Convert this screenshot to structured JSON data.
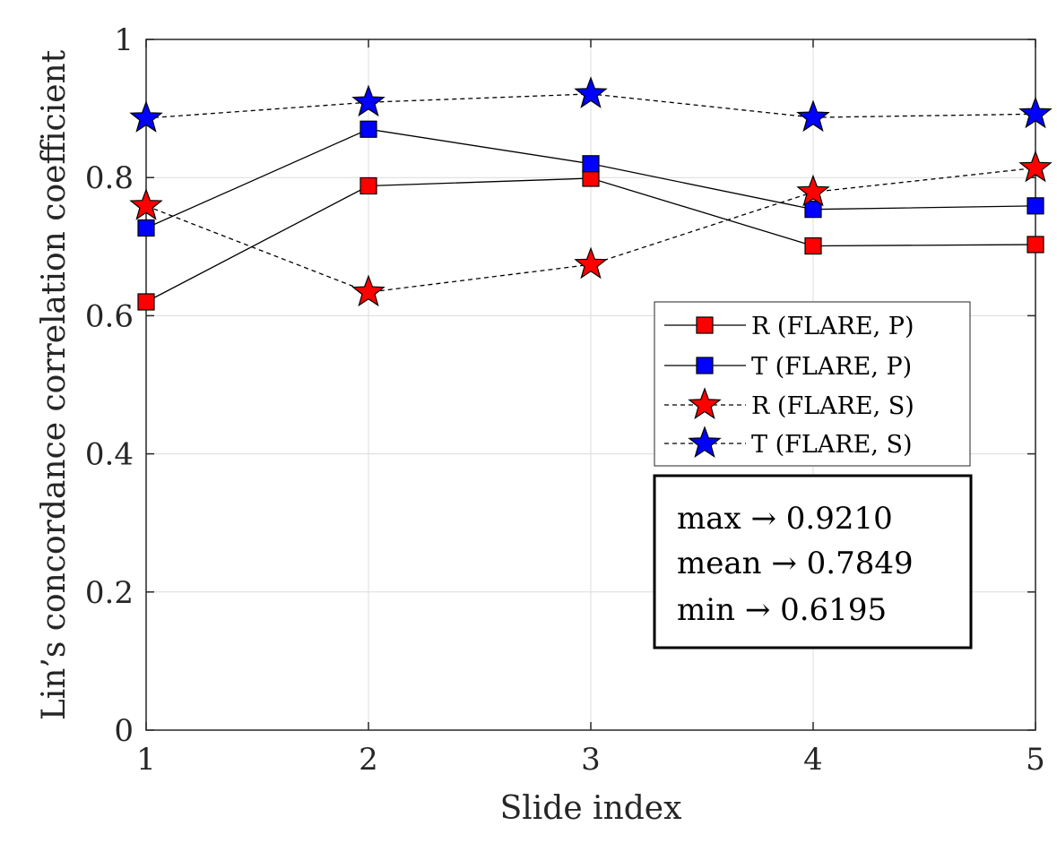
{
  "chart_data": {
    "type": "line",
    "xlabel": "Slide index",
    "ylabel": "Lin’s concordance correlation coefficient",
    "x": [
      1,
      2,
      3,
      4,
      5
    ],
    "xlim": [
      1,
      5
    ],
    "ylim": [
      0,
      1
    ],
    "xticks": [
      1,
      2,
      3,
      4,
      5
    ],
    "yticks": [
      0,
      0.2,
      0.4,
      0.6,
      0.8,
      1
    ],
    "ytick_labels": [
      "0",
      "0.2",
      "0.4",
      "0.6",
      "0.8",
      "1"
    ],
    "grid": true,
    "legend_position": "right",
    "series": [
      {
        "name": "R (FLARE, P)",
        "values": [
          0.62,
          0.788,
          0.799,
          0.701,
          0.703
        ],
        "color": "#ff0000",
        "marker": "square",
        "line": "solid"
      },
      {
        "name": "T (FLARE, P)",
        "values": [
          0.727,
          0.87,
          0.82,
          0.754,
          0.759
        ],
        "color": "#0000ff",
        "marker": "square",
        "line": "solid"
      },
      {
        "name": "R (FLARE, S)",
        "values": [
          0.759,
          0.634,
          0.674,
          0.779,
          0.814
        ],
        "color": "#ff0000",
        "marker": "star",
        "line": "dashed"
      },
      {
        "name": "T (FLARE, S)",
        "values": [
          0.886,
          0.909,
          0.921,
          0.887,
          0.892
        ],
        "color": "#0000ff",
        "marker": "star",
        "line": "dashed"
      }
    ],
    "annotations": {
      "max": "max → 0.9210",
      "mean": "mean → 0.7849",
      "min": "min → 0.6195"
    }
  }
}
